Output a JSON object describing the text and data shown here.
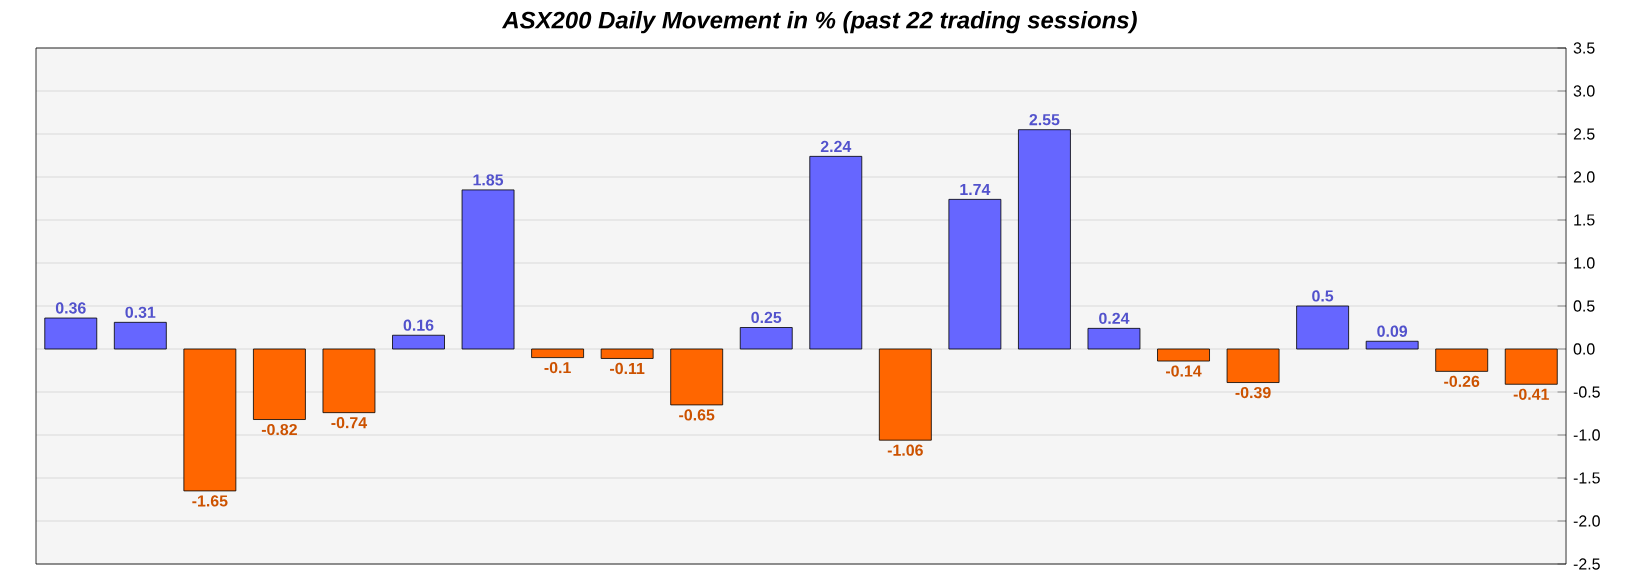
{
  "chart_data": {
    "type": "bar",
    "title": "*ASX200 Daily Movement in % (past 22 trading sessions)*",
    "categories": [
      null,
      null,
      null,
      null,
      null,
      null,
      null,
      null,
      null,
      null,
      null,
      null,
      null,
      null,
      null,
      null,
      null,
      null,
      null,
      null,
      null,
      null
    ],
    "values": [
      0.36,
      0.31,
      -1.65,
      -0.82,
      -0.74,
      0.16,
      1.85,
      -0.1,
      -0.11,
      -0.65,
      0.25,
      2.24,
      -1.06,
      1.74,
      2.55,
      0.24,
      -0.14,
      -0.39,
      0.5,
      0.09,
      -0.26,
      -0.41
    ],
    "colors": [
      "#6666ff",
      "#6666ff",
      "#ff6600",
      "#ff6600",
      "#ff6600",
      "#6666ff",
      "#6666ff",
      "#ff6600",
      "#ff6600",
      "#ff6600",
      "#6666ff",
      "#6666ff",
      "#ff6600",
      "#6666ff",
      "#6666ff",
      "#6666ff",
      "#ff6600",
      "#ff6600",
      "#6666ff",
      "#6666ff",
      "#ff6600",
      "#ff6600"
    ],
    "ylim": [
      -2.5,
      3.5
    ],
    "yticks": [
      {
        "value": -2.5,
        "label": "-2.5"
      },
      {
        "value": -2,
        "label": "-2.0"
      },
      {
        "value": -1.5,
        "label": "-1.5"
      },
      {
        "value": -1,
        "label": "-1.0"
      },
      {
        "value": -0.5,
        "label": "-0.5"
      },
      {
        "value": 0,
        "label": "0.0"
      },
      {
        "value": 0.5,
        "label": "0.5"
      },
      {
        "value": 1,
        "label": "1.0"
      },
      {
        "value": 1.5,
        "label": "1.5"
      },
      {
        "value": 2,
        "label": "2.0"
      },
      {
        "value": 2.5,
        "label": "2.5"
      },
      {
        "value": 3,
        "label": "3.0"
      },
      {
        "value": 3.5,
        "label": "3.5"
      }
    ],
    "grid": "y",
    "data_labels": true,
    "tick_labels": "y"
  }
}
